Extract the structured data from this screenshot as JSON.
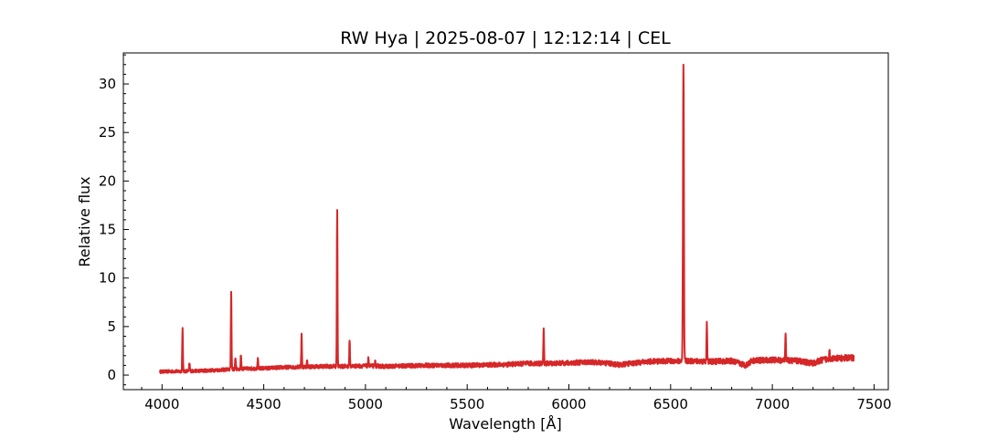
{
  "chart_data": {
    "type": "line",
    "title": "RW Hya | 2025-08-07 | 12:12:14 | CEL",
    "xlabel": "Wavelength [Å]",
    "ylabel": "Relative flux",
    "xlim": [
      3810,
      7570
    ],
    "ylim": [
      -1.5,
      33.2
    ],
    "xticks": [
      4000,
      4500,
      5000,
      5500,
      6000,
      6500,
      7000,
      7500
    ],
    "yticks": [
      0,
      5,
      10,
      15,
      20,
      25,
      30
    ],
    "grid": false,
    "legend": "none",
    "series": [
      {
        "color": "#d62728",
        "continuum": [
          [
            3990,
            0.35
          ],
          [
            4100,
            0.4
          ],
          [
            4200,
            0.45
          ],
          [
            4300,
            0.55
          ],
          [
            4400,
            0.65
          ],
          [
            4500,
            0.7
          ],
          [
            4600,
            0.8
          ],
          [
            4700,
            0.85
          ],
          [
            4800,
            0.9
          ],
          [
            4900,
            0.9
          ],
          [
            5000,
            0.95
          ],
          [
            5100,
            0.9
          ],
          [
            5200,
            0.95
          ],
          [
            5300,
            1.0
          ],
          [
            5400,
            1.0
          ],
          [
            5500,
            1.0
          ],
          [
            5600,
            1.05
          ],
          [
            5700,
            1.1
          ],
          [
            5800,
            1.2
          ],
          [
            5900,
            1.2
          ],
          [
            6000,
            1.25
          ],
          [
            6100,
            1.35
          ],
          [
            6200,
            1.2
          ],
          [
            6250,
            1.05
          ],
          [
            6300,
            1.2
          ],
          [
            6400,
            1.4
          ],
          [
            6500,
            1.45
          ],
          [
            6600,
            1.45
          ],
          [
            6700,
            1.4
          ],
          [
            6800,
            1.45
          ],
          [
            6870,
            1.0
          ],
          [
            6900,
            1.5
          ],
          [
            7000,
            1.55
          ],
          [
            7100,
            1.5
          ],
          [
            7150,
            1.4
          ],
          [
            7200,
            1.2
          ],
          [
            7250,
            1.6
          ],
          [
            7300,
            1.7
          ],
          [
            7400,
            1.8
          ]
        ],
        "emission_lines": [
          {
            "x": 4101,
            "peak": 4.8
          },
          {
            "x": 4135,
            "peak": 1.2
          },
          {
            "x": 4340,
            "peak": 8.7
          },
          {
            "x": 4361,
            "peak": 1.8
          },
          {
            "x": 4388,
            "peak": 2.1
          },
          {
            "x": 4471,
            "peak": 1.6
          },
          {
            "x": 4686,
            "peak": 4.2
          },
          {
            "x": 4713,
            "peak": 1.5
          },
          {
            "x": 4861,
            "peak": 17.1
          },
          {
            "x": 4922,
            "peak": 3.5
          },
          {
            "x": 5015,
            "peak": 1.8
          },
          {
            "x": 5048,
            "peak": 1.4
          },
          {
            "x": 5876,
            "peak": 4.8
          },
          {
            "x": 6563,
            "peak": 31.8
          },
          {
            "x": 6678,
            "peak": 5.3
          },
          {
            "x": 7065,
            "peak": 4.1
          },
          {
            "x": 7281,
            "peak": 2.6
          }
        ]
      }
    ]
  }
}
